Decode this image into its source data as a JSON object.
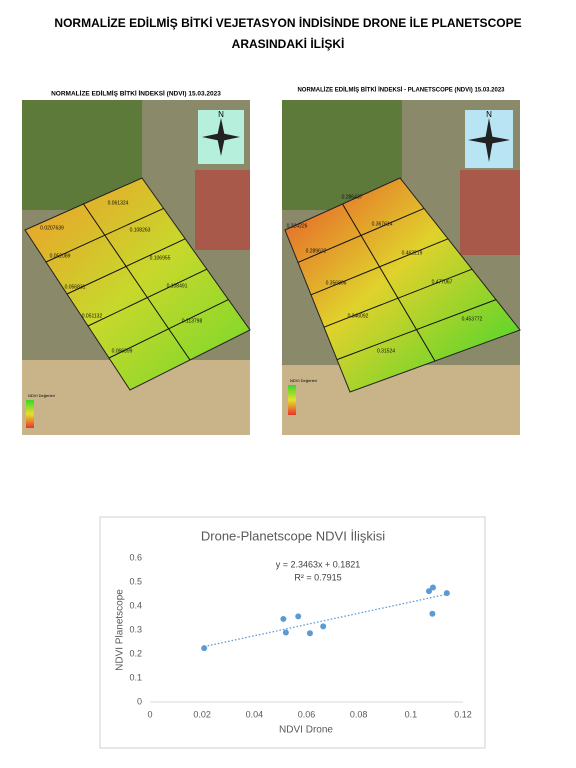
{
  "header": {
    "title_line1": "NORMALİZE EDİLMİŞ BİTKİ VEJETASYON İNDİSİNDE DRONE İLE PLANETSCOPE",
    "title_line2": "ARASINDAKİ İLİŞKİ"
  },
  "maps": [
    {
      "title": "NORMALİZE EDİLMİŞ BİTKİ İNDEKSİ (NDVI) 15.03.2023",
      "compass": "N",
      "legend": "NDVI Değerleri",
      "labels": [
        "0.061324",
        "0.0207639",
        "0.108263",
        "0.052089",
        "0.106955",
        "0.056831",
        "0.108491",
        "0.051132",
        "0.113798",
        "0.066399"
      ]
    },
    {
      "title": "NORMALİZE EDİLMİŞ BİTKİ İNDEKSİ - PLANETSCOPE (NDVI) 15.03.2023",
      "compass": "N",
      "legend": "NDVI Değerleri",
      "labels": [
        "0.286437",
        "0.224226",
        "0.367614",
        "0.289632",
        "0.462219",
        "0.356806",
        "0.477067",
        "0.346092",
        "0.453772",
        "0.31524"
      ]
    }
  ],
  "chart_data": {
    "type": "scatter",
    "title": "Drone-Planetscope NDVI İlişkisi",
    "x_label": "NDVI Drone",
    "y_label": "NDVI Planetscope",
    "color": "#5b9bd5",
    "x": [
      0.061324,
      0.0207639,
      0.108263,
      0.052089,
      0.106955,
      0.056831,
      0.108491,
      0.051132,
      0.113798,
      0.066399
    ],
    "values": [
      0.286437,
      0.224226,
      0.367614,
      0.289632,
      0.462219,
      0.356806,
      0.477067,
      0.346092,
      0.453772,
      0.31524
    ],
    "xlim": [
      0,
      0.12
    ],
    "xticks": [
      0,
      0.02,
      0.04,
      0.06,
      0.08,
      0.1,
      0.12
    ],
    "ylim": [
      0,
      0.6
    ],
    "yticks": [
      0,
      0.1,
      0.2,
      0.3,
      0.4,
      0.5,
      0.6
    ],
    "trendline": {
      "slope": 2.3463,
      "intercept": 0.1821,
      "label": "y = 2.3463x + 0.1821",
      "r2_label": "R² = 0.7915"
    }
  }
}
